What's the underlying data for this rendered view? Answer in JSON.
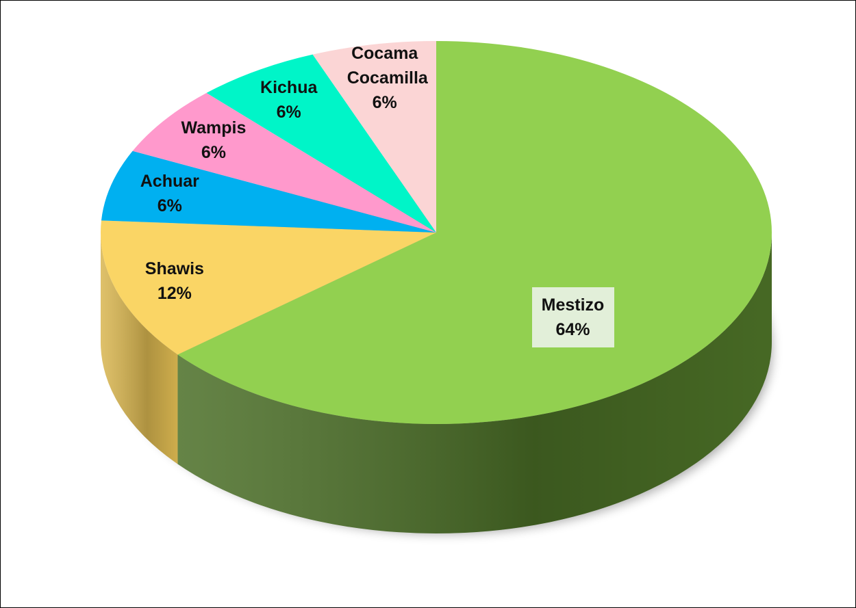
{
  "chart_data": {
    "type": "pie",
    "categories": [
      "Mestizo",
      "Shawis",
      "Achuar",
      "Wampis",
      "Kichua",
      "Cocama Cocamilla"
    ],
    "values": [
      64,
      12,
      6,
      6,
      6,
      6
    ],
    "value_labels": [
      "64%",
      "12%",
      "6%",
      "6%",
      "6%",
      "6%"
    ],
    "colors": [
      "#92d050",
      "#fad565",
      "#00b0f0",
      "#ff99cc",
      "#00f5c8",
      "#fbd5d5"
    ],
    "side_colors": [
      "#4a6e26",
      "#d9b650",
      "#0088bb",
      "#cc6fa0",
      "#00b896",
      "#d8a8a8"
    ]
  }
}
